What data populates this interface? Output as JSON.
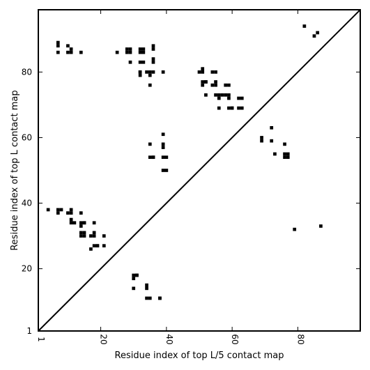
{
  "chart_data": {
    "type": "scatter",
    "xlabel": "Residue index of top L/5 contact map",
    "ylabel": "Residue index of top L contact map",
    "xlim": [
      1,
      99
    ],
    "ylim": [
      1,
      99
    ],
    "xticks": [
      1,
      20,
      40,
      60,
      80
    ],
    "xtick_labels": [
      "1",
      "20",
      "40",
      "60",
      "80"
    ],
    "yticks": [
      1,
      20,
      40,
      60,
      80
    ],
    "ytick_labels": [
      "1",
      "20",
      "40",
      "60",
      "80"
    ],
    "diagonal": true,
    "marker": "square",
    "color": "#000000",
    "series": [
      {
        "label": "top_L_contacts_upper_left",
        "x": [
          7,
          7,
          7,
          10,
          10,
          11,
          11,
          14,
          25,
          28,
          28,
          29,
          29,
          29,
          32,
          32,
          32,
          33,
          33,
          32,
          33,
          34,
          35,
          36,
          35,
          36,
          36,
          36,
          36,
          32,
          32,
          39,
          35
        ],
        "y": [
          89,
          88,
          86,
          88,
          86,
          86,
          87,
          86,
          86,
          86,
          87,
          83,
          86,
          87,
          87,
          86,
          83,
          87,
          86,
          80,
          83,
          80,
          80,
          80,
          79,
          83,
          84,
          87,
          88,
          79,
          80,
          80,
          76
        ],
        "name": ""
      },
      {
        "label": "top_L_contacts_upper_middle",
        "x": [
          50,
          51,
          51,
          51,
          52,
          51,
          52,
          52,
          54,
          55,
          55,
          54,
          55,
          55,
          56,
          56,
          57,
          58,
          59,
          58,
          59,
          59,
          59,
          60,
          60,
          62,
          63,
          62,
          63,
          56
        ],
        "y": [
          80,
          80,
          81,
          77,
          77,
          76,
          77,
          73,
          80,
          80,
          77,
          76,
          76,
          73,
          73,
          72,
          73,
          76,
          76,
          73,
          73,
          72,
          69,
          69,
          69,
          72,
          72,
          69,
          69,
          69
        ],
        "name": ""
      },
      {
        "label": "top_L_contacts_middle",
        "x": [
          39,
          39,
          39,
          35,
          35,
          36,
          36,
          39,
          40,
          39,
          40,
          69,
          69,
          72,
          72,
          73,
          76,
          76,
          77,
          77,
          76
        ],
        "y": [
          61,
          58,
          57,
          58,
          54,
          54,
          54,
          54,
          54,
          50,
          50,
          60,
          59,
          63,
          59,
          55,
          58,
          55,
          55,
          54,
          54
        ],
        "name": ""
      },
      {
        "label": "top_L_contacts_lower_left",
        "x": [
          4,
          7,
          7,
          8,
          10,
          11,
          11,
          11,
          11,
          12,
          14,
          14,
          15,
          14,
          15,
          14,
          15,
          15,
          14,
          18,
          18,
          17,
          18,
          19,
          17,
          18,
          21,
          21,
          19
        ],
        "y": [
          38,
          38,
          37,
          38,
          37,
          37,
          38,
          35,
          34,
          34,
          37,
          34,
          34,
          33,
          34,
          31,
          31,
          30,
          30,
          34,
          31,
          30,
          30,
          27,
          26,
          27,
          27,
          30,
          27
        ],
        "name": ""
      },
      {
        "label": "top_L_contacts_lower_middle",
        "x": [
          30,
          31,
          30,
          31,
          30,
          34,
          34,
          34,
          35,
          38,
          38
        ],
        "y": [
          18,
          18,
          17,
          18,
          14,
          15,
          14,
          11,
          11,
          11,
          11
        ],
        "name": ""
      },
      {
        "label": "top_L_contacts_far",
        "x": [
          82,
          85,
          86,
          79,
          87
        ],
        "y": [
          94,
          91,
          92,
          32,
          33
        ],
        "name": ""
      }
    ]
  }
}
